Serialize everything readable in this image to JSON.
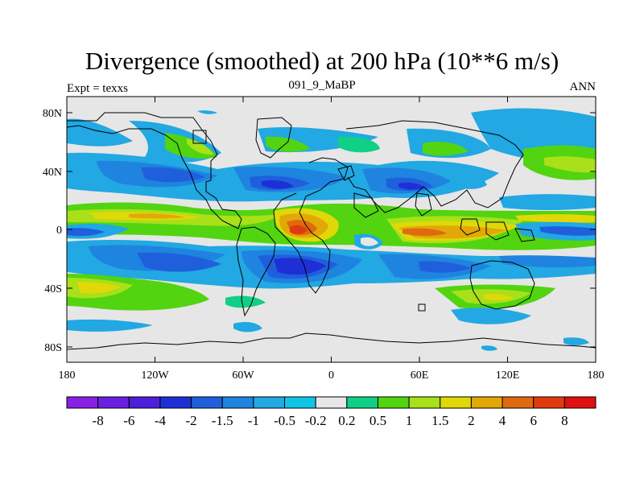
{
  "title": "Divergence (smoothed) at 200 hPa (10**6 m/s)",
  "subtitle_left": "Expt = texxs",
  "subtitle_center": "091_9_MaBP",
  "subtitle_right": "ANN",
  "x_ticks": [
    "180",
    "120W",
    "60W",
    "0",
    "60E",
    "120E",
    "180"
  ],
  "y_ticks": [
    "80N",
    "40N",
    "0",
    "40S",
    "80S"
  ],
  "colorbar": {
    "labels": [
      "-8",
      "-6",
      "-4",
      "-2",
      "-1.5",
      "-1",
      "-0.5",
      "-0.2",
      "0.2",
      "0.5",
      "1",
      "1.5",
      "2",
      "4",
      "6",
      "8"
    ],
    "colors": [
      "#8a1fe6",
      "#6a20e0",
      "#4a20d8",
      "#1f2fd6",
      "#1f5fdc",
      "#1f83e0",
      "#22a8e2",
      "#10c4e6",
      "#e6e6e6",
      "#10d086",
      "#52d410",
      "#a8e01a",
      "#e0d808",
      "#e2a808",
      "#e06a10",
      "#e03a10",
      "#e01010"
    ]
  }
}
